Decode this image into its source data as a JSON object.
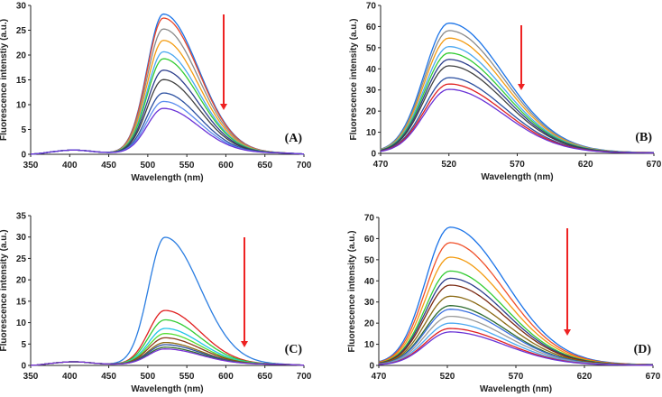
{
  "chart_data": [
    {
      "id": "A",
      "type": "line",
      "panel_label": "(A)",
      "xlabel": "Wavelength (nm)",
      "ylabel": "Fluorescence intenstiy (a.u.)",
      "xlim": [
        350,
        700
      ],
      "ylim": [
        0,
        30
      ],
      "xticks": [
        350,
        400,
        450,
        500,
        550,
        600,
        650,
        700
      ],
      "yticks": [
        0,
        5,
        10,
        15,
        20,
        25,
        30
      ],
      "peak_wavelength": 520,
      "has_400nm_band": true,
      "arrow": "downward, indicating decreasing intensity",
      "series": [
        {
          "peak": 28.0,
          "color": "#1a73e8"
        },
        {
          "peak": 27.2,
          "color": "#e8452a"
        },
        {
          "peak": 25.0,
          "color": "#8a8a8a"
        },
        {
          "peak": 22.7,
          "color": "#f39c12"
        },
        {
          "peak": 20.4,
          "color": "#4aa8f0"
        },
        {
          "peak": 19.0,
          "color": "#33cc33"
        },
        {
          "peak": 16.7,
          "color": "#2c3e8c"
        },
        {
          "peak": 14.8,
          "color": "#404040"
        },
        {
          "peak": 12.1,
          "color": "#2a4fa0"
        },
        {
          "peak": 10.4,
          "color": "#5b8def"
        },
        {
          "peak": 9.0,
          "color": "#6a33d6"
        }
      ]
    },
    {
      "id": "B",
      "type": "line",
      "panel_label": "(B)",
      "xlabel": "Wavelength (nm)",
      "ylabel": "Fluorescence intensity (a.u.)",
      "xlim": [
        470,
        670
      ],
      "ylim": [
        0,
        70
      ],
      "xticks": [
        470,
        520,
        570,
        620,
        670
      ],
      "yticks": [
        0,
        10,
        20,
        30,
        40,
        50,
        60,
        70
      ],
      "peak_wavelength": 520,
      "has_400nm_band": false,
      "arrow": "downward, indicating decreasing intensity",
      "series": [
        {
          "peak": 61.0,
          "color": "#1a73e8"
        },
        {
          "peak": 57.5,
          "color": "#8a8a8a"
        },
        {
          "peak": 54.0,
          "color": "#f39c12"
        },
        {
          "peak": 50.0,
          "color": "#4aa8f0"
        },
        {
          "peak": 47.0,
          "color": "#33cc33"
        },
        {
          "peak": 44.0,
          "color": "#2c3e8c"
        },
        {
          "peak": 41.0,
          "color": "#404040"
        },
        {
          "peak": 35.5,
          "color": "#2a4fa0"
        },
        {
          "peak": 32.5,
          "color": "#e02020"
        },
        {
          "peak": 30.0,
          "color": "#6a33d6"
        }
      ]
    },
    {
      "id": "C",
      "type": "line",
      "panel_label": "(C)",
      "xlabel": "Wavelength (nm)",
      "ylabel": "Fluorescence intensity (a.u.)",
      "xlim": [
        350,
        700
      ],
      "ylim": [
        0,
        35
      ],
      "xticks": [
        350,
        400,
        450,
        500,
        550,
        600,
        650,
        700
      ],
      "yticks": [
        0,
        5,
        10,
        15,
        20,
        25,
        30,
        35
      ],
      "peak_wavelength": 522,
      "has_400nm_band": true,
      "arrow": "downward, indicating decreasing intensity",
      "series": [
        {
          "peak": 29.7,
          "color": "#2a7de1"
        },
        {
          "peak": 12.6,
          "color": "#e02020"
        },
        {
          "peak": 10.4,
          "color": "#33cc33"
        },
        {
          "peak": 8.4,
          "color": "#22c4e8"
        },
        {
          "peak": 7.2,
          "color": "#55dd33"
        },
        {
          "peak": 6.2,
          "color": "#8b3a1a"
        },
        {
          "peak": 5.1,
          "color": "#8b6a14"
        },
        {
          "peak": 4.6,
          "color": "#2a4fa0"
        },
        {
          "peak": 4.0,
          "color": "#2e6b2e"
        },
        {
          "peak": 3.6,
          "color": "#7a33d6"
        }
      ]
    },
    {
      "id": "D",
      "type": "line",
      "panel_label": "(D)",
      "xlabel": "Wavelength (nm)",
      "ylabel": "Fluorescence intensity (a.u.)",
      "xlim": [
        470,
        670
      ],
      "ylim": [
        0,
        70
      ],
      "xticks": [
        470,
        520,
        570,
        620,
        670
      ],
      "yticks": [
        0,
        10,
        20,
        30,
        40,
        50,
        60,
        70
      ],
      "peak_wavelength": 522,
      "has_400nm_band": false,
      "arrow": "downward, indicating decreasing intensity",
      "series": [
        {
          "peak": 64.7,
          "color": "#1a73e8"
        },
        {
          "peak": 57.5,
          "color": "#f0502a"
        },
        {
          "peak": 50.7,
          "color": "#f39c12"
        },
        {
          "peak": 44.2,
          "color": "#33cc33"
        },
        {
          "peak": 40.8,
          "color": "#2c3e8c"
        },
        {
          "peak": 37.6,
          "color": "#7a2a12"
        },
        {
          "peak": 32.4,
          "color": "#8b6a14"
        },
        {
          "peak": 28.0,
          "color": "#2e6b2e"
        },
        {
          "peak": 26.3,
          "color": "#3a6fe0"
        },
        {
          "peak": 23.0,
          "color": "#9a9a9a"
        },
        {
          "peak": 19.8,
          "color": "#4aa8f0"
        },
        {
          "peak": 17.3,
          "color": "#e02020"
        },
        {
          "peak": 15.7,
          "color": "#6a33d6"
        }
      ]
    }
  ]
}
